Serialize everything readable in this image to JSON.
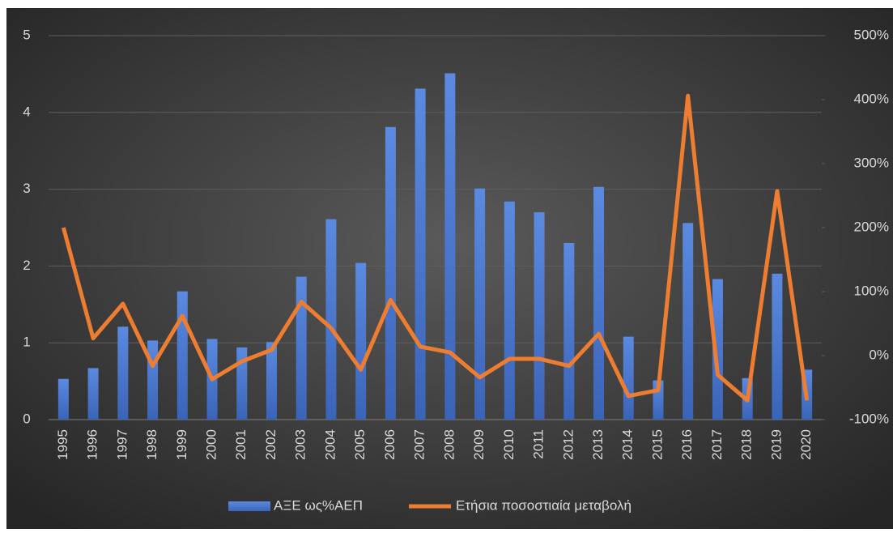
{
  "chart_data": {
    "type": "bar_line",
    "categories": [
      "1995",
      "1996",
      "1997",
      "1998",
      "1999",
      "2000",
      "2001",
      "2002",
      "2003",
      "2004",
      "2005",
      "2006",
      "2007",
      "2008",
      "2009",
      "2010",
      "2011",
      "2012",
      "2013",
      "2014",
      "2015",
      "2016",
      "2017",
      "2018",
      "2019",
      "2020"
    ],
    "series": [
      {
        "name": "ΑΞΕ ως%ΑΕΠ",
        "type": "bar",
        "color": "#4472c4",
        "values": [
          0.53,
          0.67,
          1.21,
          1.03,
          1.67,
          1.05,
          0.94,
          1.01,
          1.86,
          2.61,
          2.04,
          3.81,
          4.31,
          4.51,
          3.01,
          2.84,
          2.7,
          2.3,
          3.03,
          1.08,
          0.51,
          2.56,
          1.83,
          0.54,
          1.9,
          0.65
        ]
      },
      {
        "name": "Ετήσια ποσοστιαία μεταβολή",
        "type": "line",
        "axis": "y2",
        "color": "#ed7d31",
        "values": [
          200,
          27,
          81,
          -16,
          62,
          -37,
          -9,
          9,
          84,
          43,
          -22,
          87,
          14,
          5,
          -34,
          -5,
          -5,
          -16,
          34,
          -63,
          -54,
          406,
          -30,
          -70,
          257,
          -70
        ]
      }
    ],
    "ylim": [
      0,
      5
    ],
    "yticks": [
      0,
      1,
      2,
      3,
      4,
      5
    ],
    "y2lim": [
      -100,
      500
    ],
    "y2ticks": [
      {
        "value": -100,
        "label": "-100%"
      },
      {
        "value": 0,
        "label": "0%"
      },
      {
        "value": 100,
        "label": "100%"
      },
      {
        "value": 200,
        "label": "200%"
      },
      {
        "value": 300,
        "label": "300%"
      },
      {
        "value": 400,
        "label": "400%"
      },
      {
        "value": 500,
        "label": "500%"
      }
    ],
    "grid": true,
    "legend": "bottom"
  }
}
